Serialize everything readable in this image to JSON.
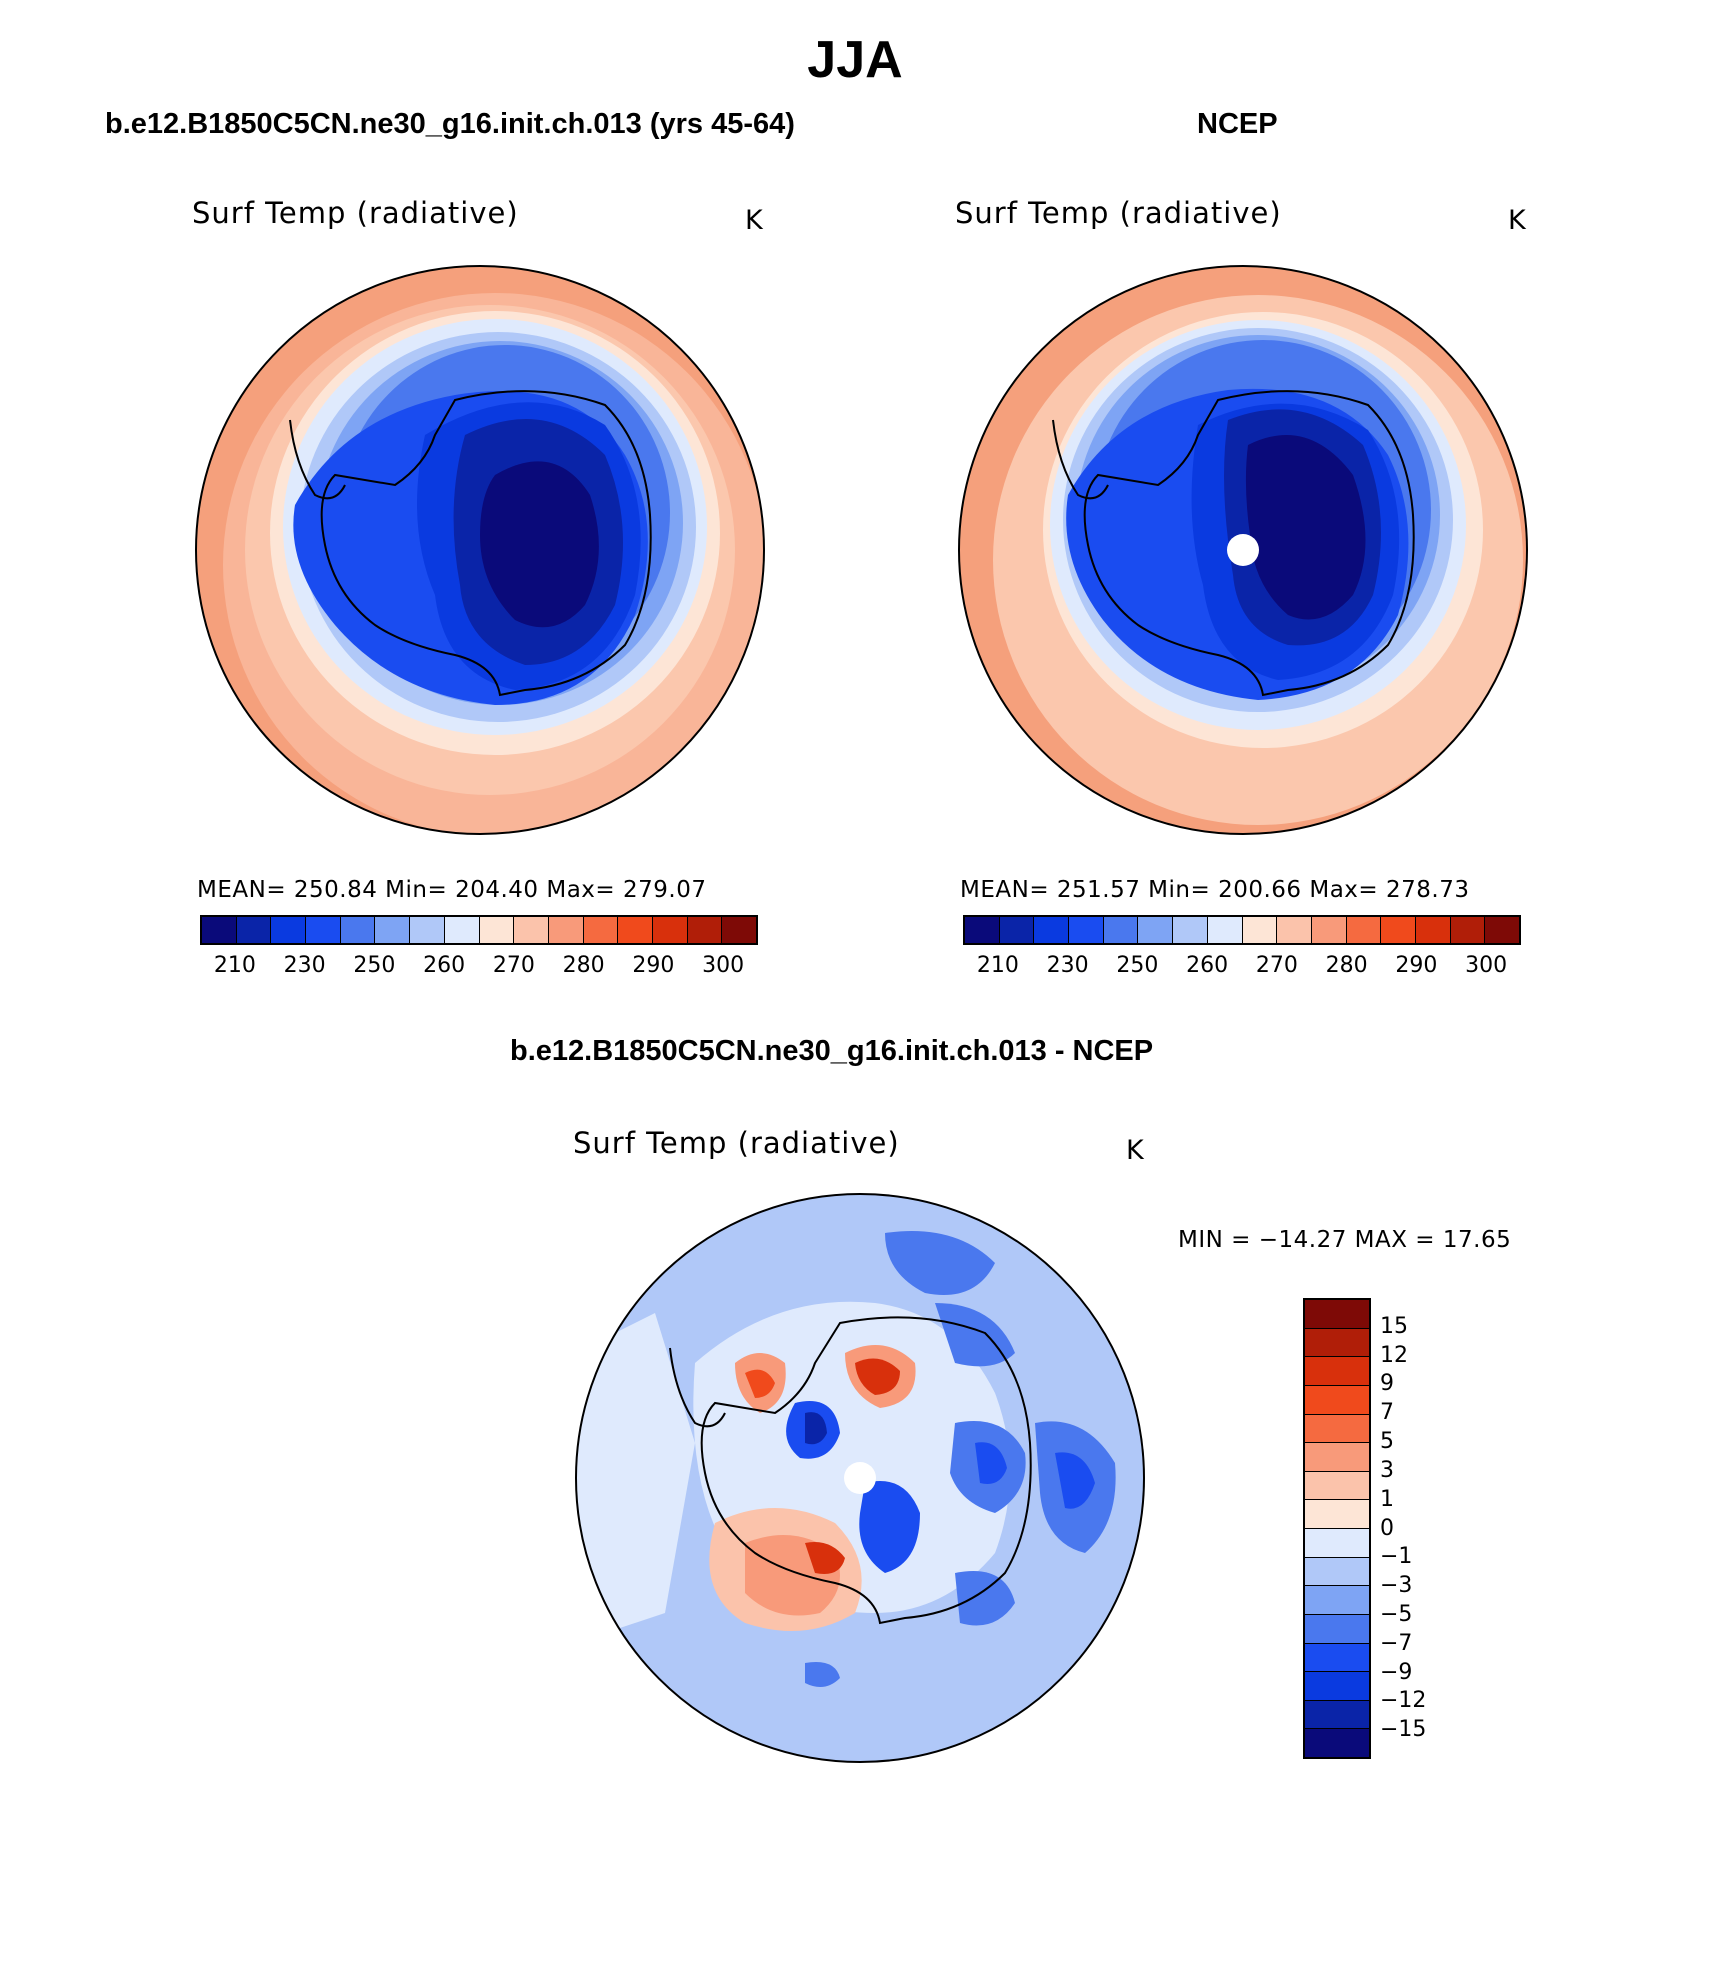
{
  "figure": {
    "title": "JJA"
  },
  "panels": [
    {
      "title": "b.e12.B1850C5CN.ne30_g16.init.ch.013 (yrs 45-64)",
      "variable": "Surf Temp (radiative)",
      "units": "K",
      "stats": "MEAN= 250.84   Min= 204.40   Max= 279.07"
    },
    {
      "title": "NCEP",
      "variable": "Surf Temp (radiative)",
      "units": "K",
      "stats": "MEAN= 251.57   Min= 200.66   Max= 278.73"
    }
  ],
  "difference": {
    "title": "b.e12.B1850C5CN.ne30_g16.init.ch.013 - NCEP",
    "variable": "Surf Temp (radiative)",
    "units": "K",
    "stats": "MIN = −14.27 MAX =   17.65"
  },
  "colorbar_abs": {
    "tick_labels": [
      "210",
      "230",
      "250",
      "260",
      "270",
      "280",
      "290",
      "300"
    ],
    "colors": [
      "#0a0a7a",
      "#0a24a8",
      "#0a3ae0",
      "#1a4cf0",
      "#4a78ee",
      "#7ea4f4",
      "#b0c8f8",
      "#dfeafd",
      "#fde5d6",
      "#fbc3ab",
      "#f89a7a",
      "#f56a40",
      "#f04a1c",
      "#d8300c",
      "#b01e08",
      "#7e0a06"
    ]
  },
  "colorbar_diff": {
    "tick_labels": [
      "15",
      "12",
      "9",
      "7",
      "5",
      "3",
      "1",
      "0",
      "−1",
      "−3",
      "−5",
      "−7",
      "−9",
      "−12",
      "−15"
    ],
    "colors": [
      "#7e0a06",
      "#b01e08",
      "#d8300c",
      "#f04a1c",
      "#f56a40",
      "#f89a7a",
      "#fbc3ab",
      "#fde5d6",
      "#dfeafd",
      "#b0c8f8",
      "#7ea4f4",
      "#4a78ee",
      "#1a4cf0",
      "#0a3ae0",
      "#0a24a8",
      "#0a0a7a"
    ]
  }
}
